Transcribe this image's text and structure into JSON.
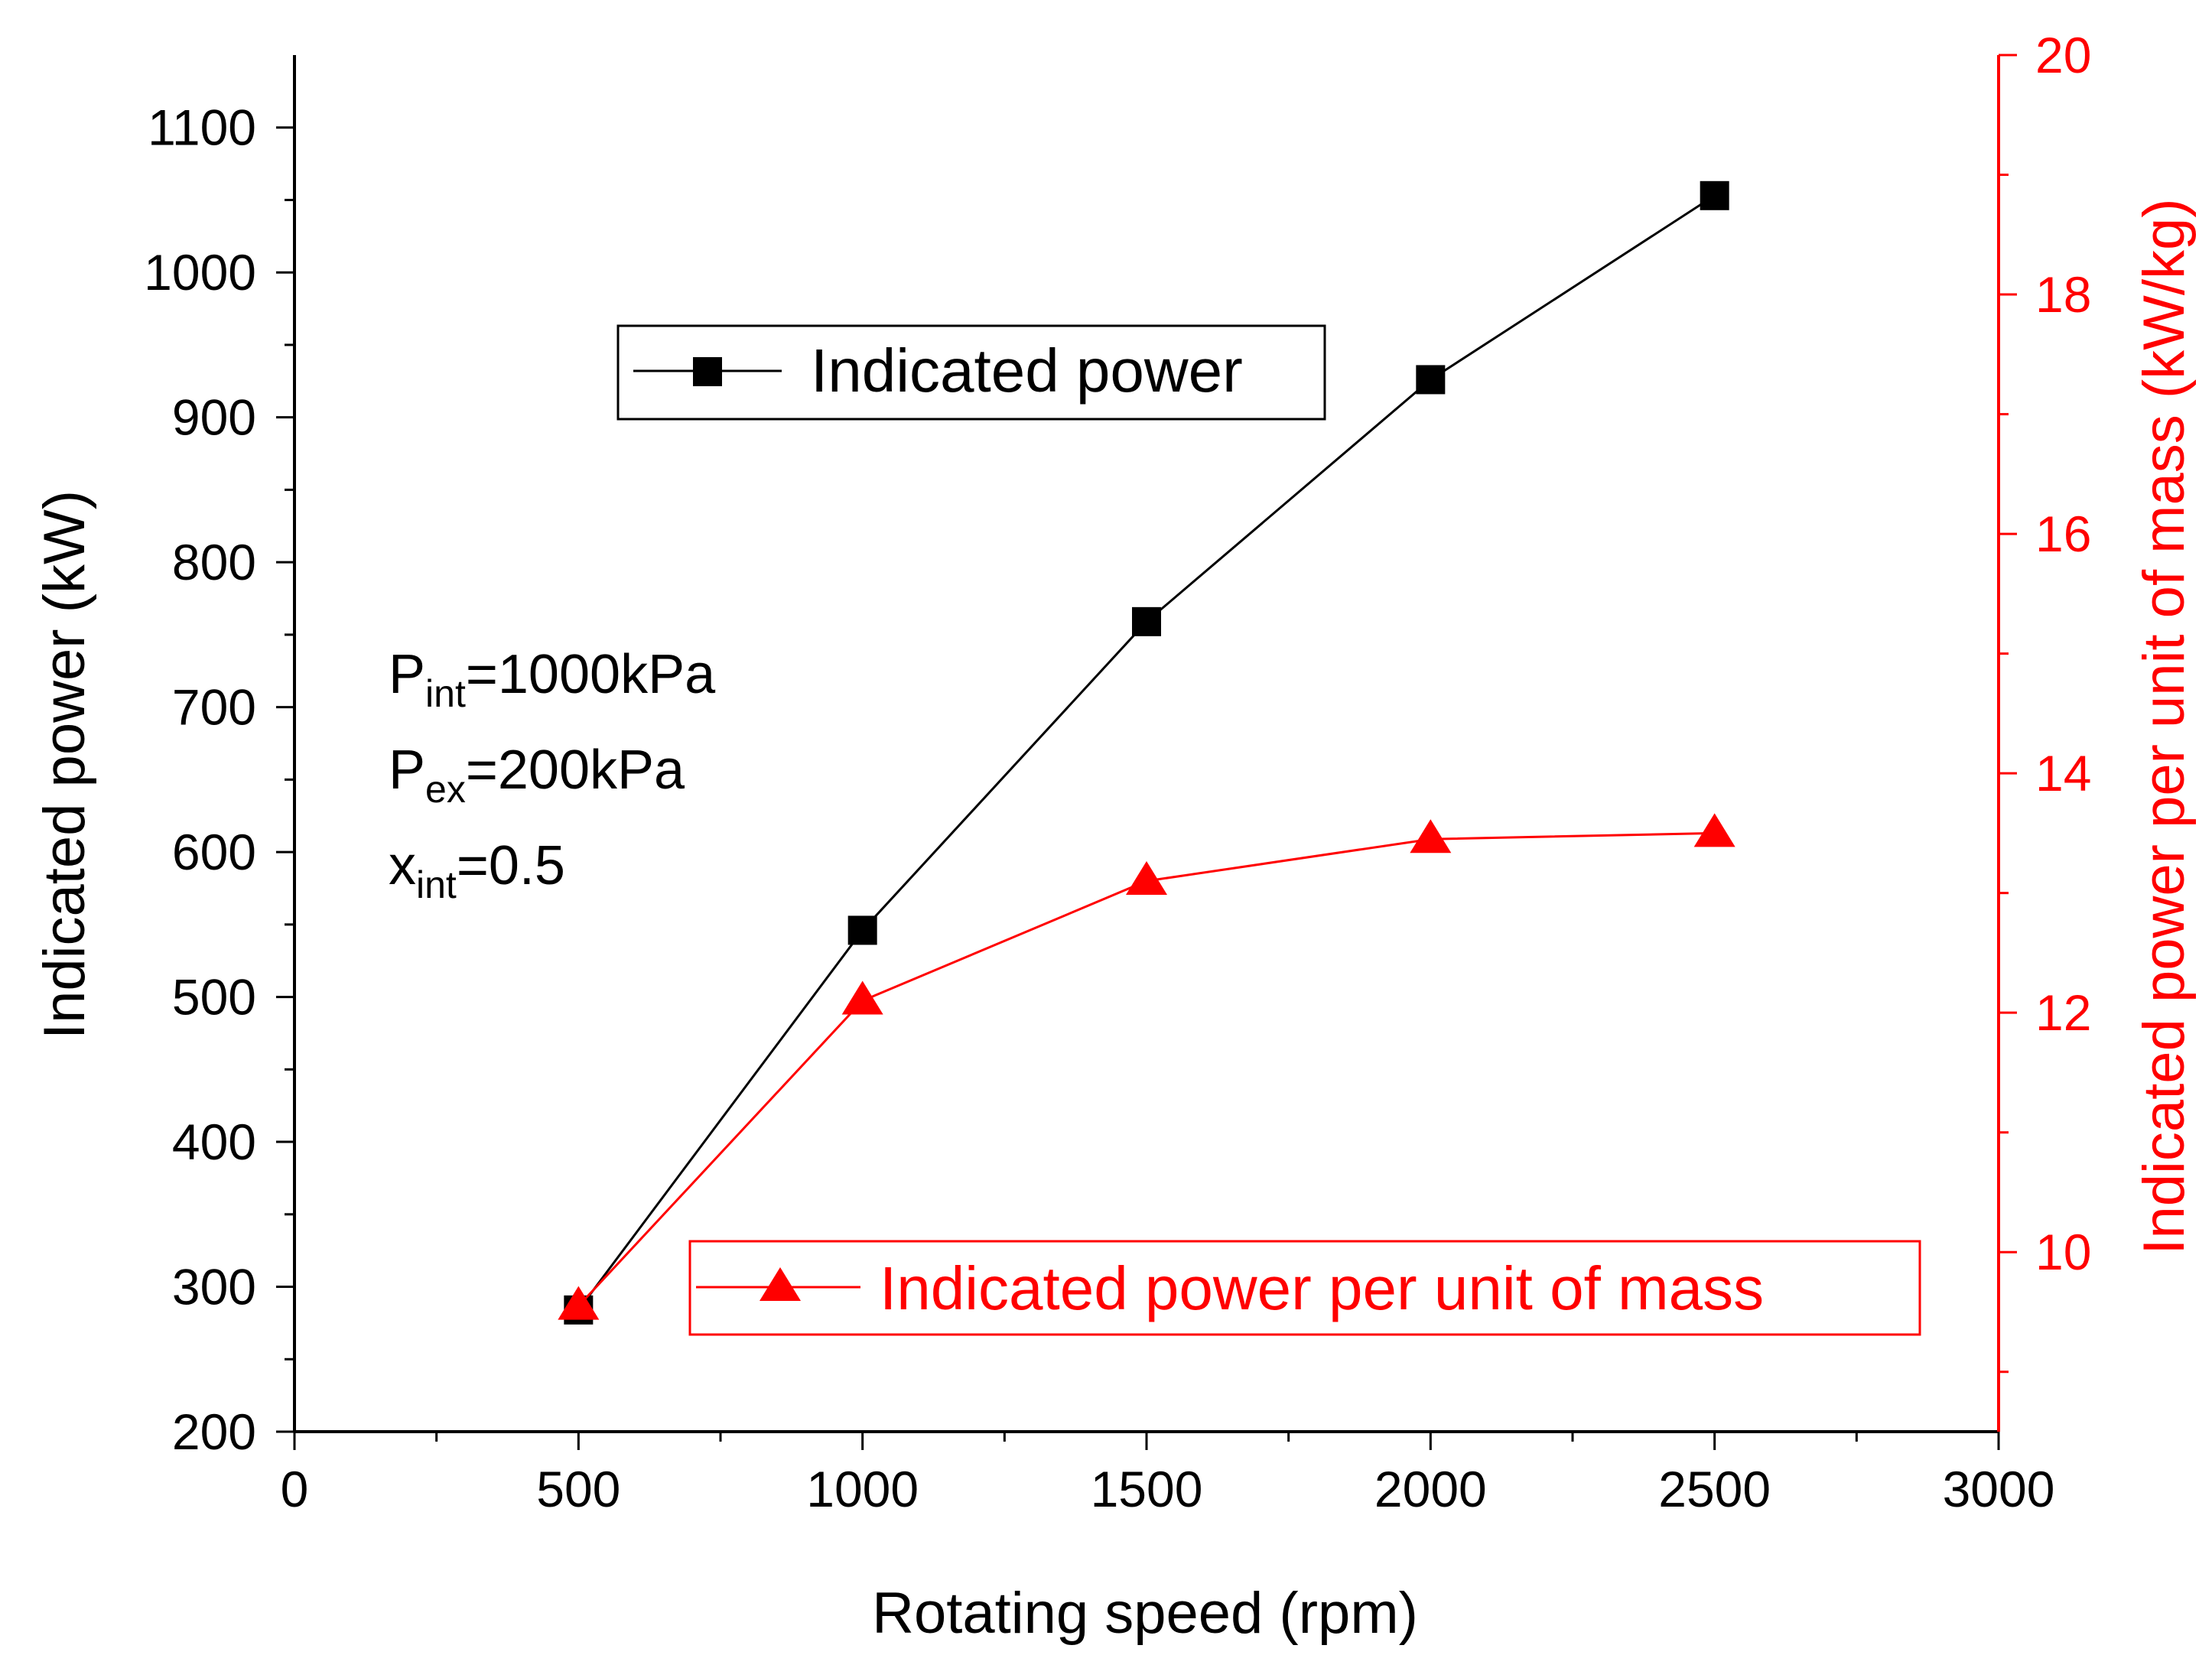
{
  "chart_data": {
    "type": "line",
    "x": [
      500,
      1000,
      1500,
      2000,
      2500
    ],
    "xlabel": "Rotating speed (rpm)",
    "xlim": [
      0,
      3000
    ],
    "x_ticks": [
      "0",
      "500",
      "1000",
      "1500",
      "2000",
      "2500",
      "3000"
    ],
    "series": [
      {
        "name": "Indicated power",
        "axis": "left",
        "marker": "square",
        "color": "#000000",
        "values": [
          284,
          546,
          759,
          926,
          1053
        ]
      },
      {
        "name": "Indicated power per unit of mass",
        "axis": "right",
        "marker": "triangle",
        "color": "#ff0000",
        "values": [
          9.55,
          12.1,
          13.1,
          13.45,
          13.5
        ]
      }
    ],
    "y_left": {
      "label": "Indicated power (kW)",
      "lim": [
        200,
        1150
      ],
      "ticks": [
        "200",
        "300",
        "400",
        "500",
        "600",
        "700",
        "800",
        "900",
        "1000",
        "1100"
      ]
    },
    "y_right": {
      "label": "Indicated power per unit of mass (kW/kg)",
      "lim": [
        8.5,
        20
      ],
      "ticks": [
        "10",
        "12",
        "14",
        "16",
        "18",
        "20"
      ],
      "color": "#ff0000"
    },
    "annotations": [
      {
        "base": "P",
        "sub": "int",
        "rest": "=1000kPa"
      },
      {
        "base": "P",
        "sub": "ex",
        "rest": "=200kPa"
      },
      {
        "base": "x",
        "sub": "int",
        "rest": "=0.5"
      }
    ]
  }
}
